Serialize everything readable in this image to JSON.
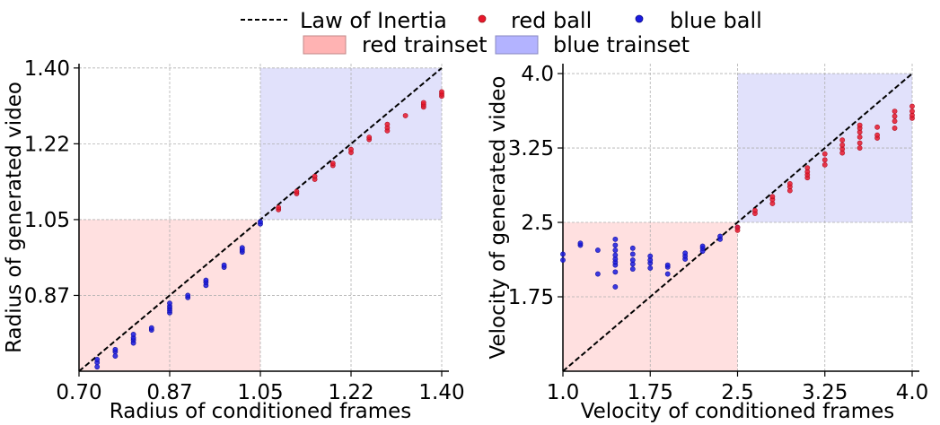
{
  "legend": {
    "position": "top-center",
    "entries": [
      {
        "key": "inertia",
        "label": "Law of Inertia",
        "kind": "dashed-line",
        "color": "#000000"
      },
      {
        "key": "red_ball",
        "label": "red ball",
        "kind": "marker",
        "color": "#e8172c"
      },
      {
        "key": "blue_ball",
        "label": "blue ball",
        "kind": "marker",
        "color": "#1a1adf"
      },
      {
        "key": "red_trainset",
        "label": "red trainset",
        "kind": "patch",
        "color": "#ffb3b3"
      },
      {
        "key": "blue_trainset",
        "label": "blue trainset",
        "kind": "patch",
        "color": "#b3b3ff"
      }
    ]
  },
  "colors": {
    "red_marker": "#e8172c",
    "blue_marker": "#1a1adf",
    "red_region": "#ffe0e0",
    "blue_region": "#e1e1fb",
    "grid": "#b0b0b0"
  },
  "chart_data": [
    {
      "type": "scatter",
      "title": "",
      "xlabel": "Radius of conditioned frames",
      "ylabel": "Radius of generated video",
      "xlim": [
        0.7,
        1.4
      ],
      "ylim": [
        0.7,
        1.41
      ],
      "xticks": [
        0.7,
        0.875,
        1.05,
        1.225,
        1.4
      ],
      "xtick_labels": [
        "0.70",
        "0.87",
        "1.05",
        "1.22",
        "1.40"
      ],
      "yticks": [
        0.875,
        1.05,
        1.225,
        1.4
      ],
      "ytick_labels": [
        "0.87",
        "1.05",
        "1.22",
        "1.40"
      ],
      "grid": true,
      "reference_line": {
        "label": "Law of Inertia",
        "points": [
          [
            0.7,
            0.7
          ],
          [
            1.4,
            1.4
          ]
        ]
      },
      "regions": [
        {
          "name": "red trainset",
          "x": [
            0.7,
            1.05
          ],
          "y": [
            0.7,
            1.05
          ]
        },
        {
          "name": "blue trainset",
          "x": [
            1.05,
            1.4
          ],
          "y": [
            1.05,
            1.4
          ]
        }
      ],
      "series": [
        {
          "name": "blue ball",
          "points": [
            [
              0.735,
              0.71
            ],
            [
              0.735,
              0.72
            ],
            [
              0.735,
              0.727
            ],
            [
              0.77,
              0.735
            ],
            [
              0.77,
              0.745
            ],
            [
              0.77,
              0.75
            ],
            [
              0.805,
              0.765
            ],
            [
              0.805,
              0.772
            ],
            [
              0.805,
              0.777
            ],
            [
              0.805,
              0.785
            ],
            [
              0.84,
              0.795
            ],
            [
              0.84,
              0.8
            ],
            [
              0.875,
              0.835
            ],
            [
              0.875,
              0.84
            ],
            [
              0.875,
              0.845
            ],
            [
              0.875,
              0.85
            ],
            [
              0.875,
              0.857
            ],
            [
              0.91,
              0.87
            ],
            [
              0.91,
              0.875
            ],
            [
              0.945,
              0.898
            ],
            [
              0.945,
              0.905
            ],
            [
              0.945,
              0.91
            ],
            [
              0.98,
              0.94
            ],
            [
              0.98,
              0.945
            ],
            [
              1.015,
              0.975
            ],
            [
              1.015,
              0.98
            ],
            [
              1.015,
              0.985
            ],
            [
              1.05,
              1.04
            ],
            [
              1.05,
              1.045
            ]
          ]
        },
        {
          "name": "red ball",
          "points": [
            [
              1.085,
              1.073
            ],
            [
              1.085,
              1.078
            ],
            [
              1.12,
              1.11
            ],
            [
              1.12,
              1.115
            ],
            [
              1.155,
              1.143
            ],
            [
              1.155,
              1.15
            ],
            [
              1.19,
              1.175
            ],
            [
              1.19,
              1.18
            ],
            [
              1.225,
              1.205
            ],
            [
              1.225,
              1.212
            ],
            [
              1.26,
              1.235
            ],
            [
              1.26,
              1.24
            ],
            [
              1.295,
              1.255
            ],
            [
              1.295,
              1.262
            ],
            [
              1.295,
              1.27
            ],
            [
              1.33,
              1.29
            ],
            [
              1.365,
              1.31
            ],
            [
              1.365,
              1.315
            ],
            [
              1.365,
              1.32
            ],
            [
              1.4,
              1.335
            ],
            [
              1.4,
              1.34
            ],
            [
              1.4,
              1.345
            ]
          ]
        }
      ]
    },
    {
      "type": "scatter",
      "title": "",
      "xlabel": "Velocity of conditioned frames",
      "ylabel": "Velocity of generated video",
      "xlim": [
        1.0,
        4.0
      ],
      "ylim": [
        1.0,
        4.1
      ],
      "xticks": [
        1.0,
        1.75,
        2.5,
        3.25,
        4.0
      ],
      "xtick_labels": [
        "1.0",
        "1.75",
        "2.5",
        "3.25",
        "4.0"
      ],
      "yticks": [
        1.75,
        2.5,
        3.25,
        4.0
      ],
      "ytick_labels": [
        "1.75",
        "2.5",
        "3.25",
        "4.0"
      ],
      "grid": true,
      "reference_line": {
        "label": "Law of Inertia",
        "points": [
          [
            1.0,
            1.0
          ],
          [
            4.0,
            4.0
          ]
        ]
      },
      "regions": [
        {
          "name": "red trainset",
          "x": [
            1.0,
            2.5
          ],
          "y": [
            1.0,
            2.5
          ]
        },
        {
          "name": "blue trainset",
          "x": [
            2.5,
            4.0
          ],
          "y": [
            2.5,
            4.0
          ]
        }
      ],
      "series": [
        {
          "name": "blue ball",
          "points": [
            [
              1.0,
              2.12
            ],
            [
              1.0,
              2.18
            ],
            [
              1.15,
              2.27
            ],
            [
              1.15,
              2.29
            ],
            [
              1.3,
              1.98
            ],
            [
              1.3,
              2.22
            ],
            [
              1.45,
              1.85
            ],
            [
              1.45,
              2.0
            ],
            [
              1.45,
              2.07
            ],
            [
              1.45,
              2.1
            ],
            [
              1.45,
              2.13
            ],
            [
              1.45,
              2.17
            ],
            [
              1.45,
              2.22
            ],
            [
              1.45,
              2.27
            ],
            [
              1.45,
              2.33
            ],
            [
              1.6,
              2.03
            ],
            [
              1.6,
              2.08
            ],
            [
              1.6,
              2.12
            ],
            [
              1.6,
              2.18
            ],
            [
              1.6,
              2.24
            ],
            [
              1.75,
              2.04
            ],
            [
              1.75,
              2.09
            ],
            [
              1.75,
              2.12
            ],
            [
              1.75,
              2.16
            ],
            [
              1.9,
              1.98
            ],
            [
              1.9,
              2.05
            ],
            [
              1.9,
              2.07
            ],
            [
              2.05,
              2.13
            ],
            [
              2.05,
              2.16
            ],
            [
              2.05,
              2.19
            ],
            [
              2.2,
              2.21
            ],
            [
              2.2,
              2.24
            ],
            [
              2.2,
              2.26
            ],
            [
              2.35,
              2.33
            ],
            [
              2.35,
              2.36
            ],
            [
              2.5,
              2.45
            ]
          ]
        },
        {
          "name": "red ball",
          "points": [
            [
              2.5,
              2.42
            ],
            [
              2.5,
              2.45
            ],
            [
              2.65,
              2.59
            ],
            [
              2.65,
              2.62
            ],
            [
              2.8,
              2.69
            ],
            [
              2.8,
              2.73
            ],
            [
              2.8,
              2.76
            ],
            [
              2.95,
              2.82
            ],
            [
              2.95,
              2.86
            ],
            [
              2.95,
              2.89
            ],
            [
              3.1,
              2.95
            ],
            [
              3.1,
              2.98
            ],
            [
              3.1,
              3.01
            ],
            [
              3.1,
              3.05
            ],
            [
              3.25,
              3.08
            ],
            [
              3.25,
              3.13
            ],
            [
              3.25,
              3.19
            ],
            [
              3.4,
              3.2
            ],
            [
              3.4,
              3.24
            ],
            [
              3.4,
              3.28
            ],
            [
              3.4,
              3.33
            ],
            [
              3.55,
              3.25
            ],
            [
              3.55,
              3.3
            ],
            [
              3.55,
              3.36
            ],
            [
              3.55,
              3.41
            ],
            [
              3.55,
              3.45
            ],
            [
              3.55,
              3.48
            ],
            [
              3.7,
              3.35
            ],
            [
              3.7,
              3.38
            ],
            [
              3.7,
              3.46
            ],
            [
              3.85,
              3.45
            ],
            [
              3.85,
              3.52
            ],
            [
              3.85,
              3.57
            ],
            [
              3.85,
              3.62
            ],
            [
              4.0,
              3.55
            ],
            [
              4.0,
              3.58
            ],
            [
              4.0,
              3.62
            ],
            [
              4.0,
              3.67
            ]
          ]
        }
      ]
    }
  ]
}
